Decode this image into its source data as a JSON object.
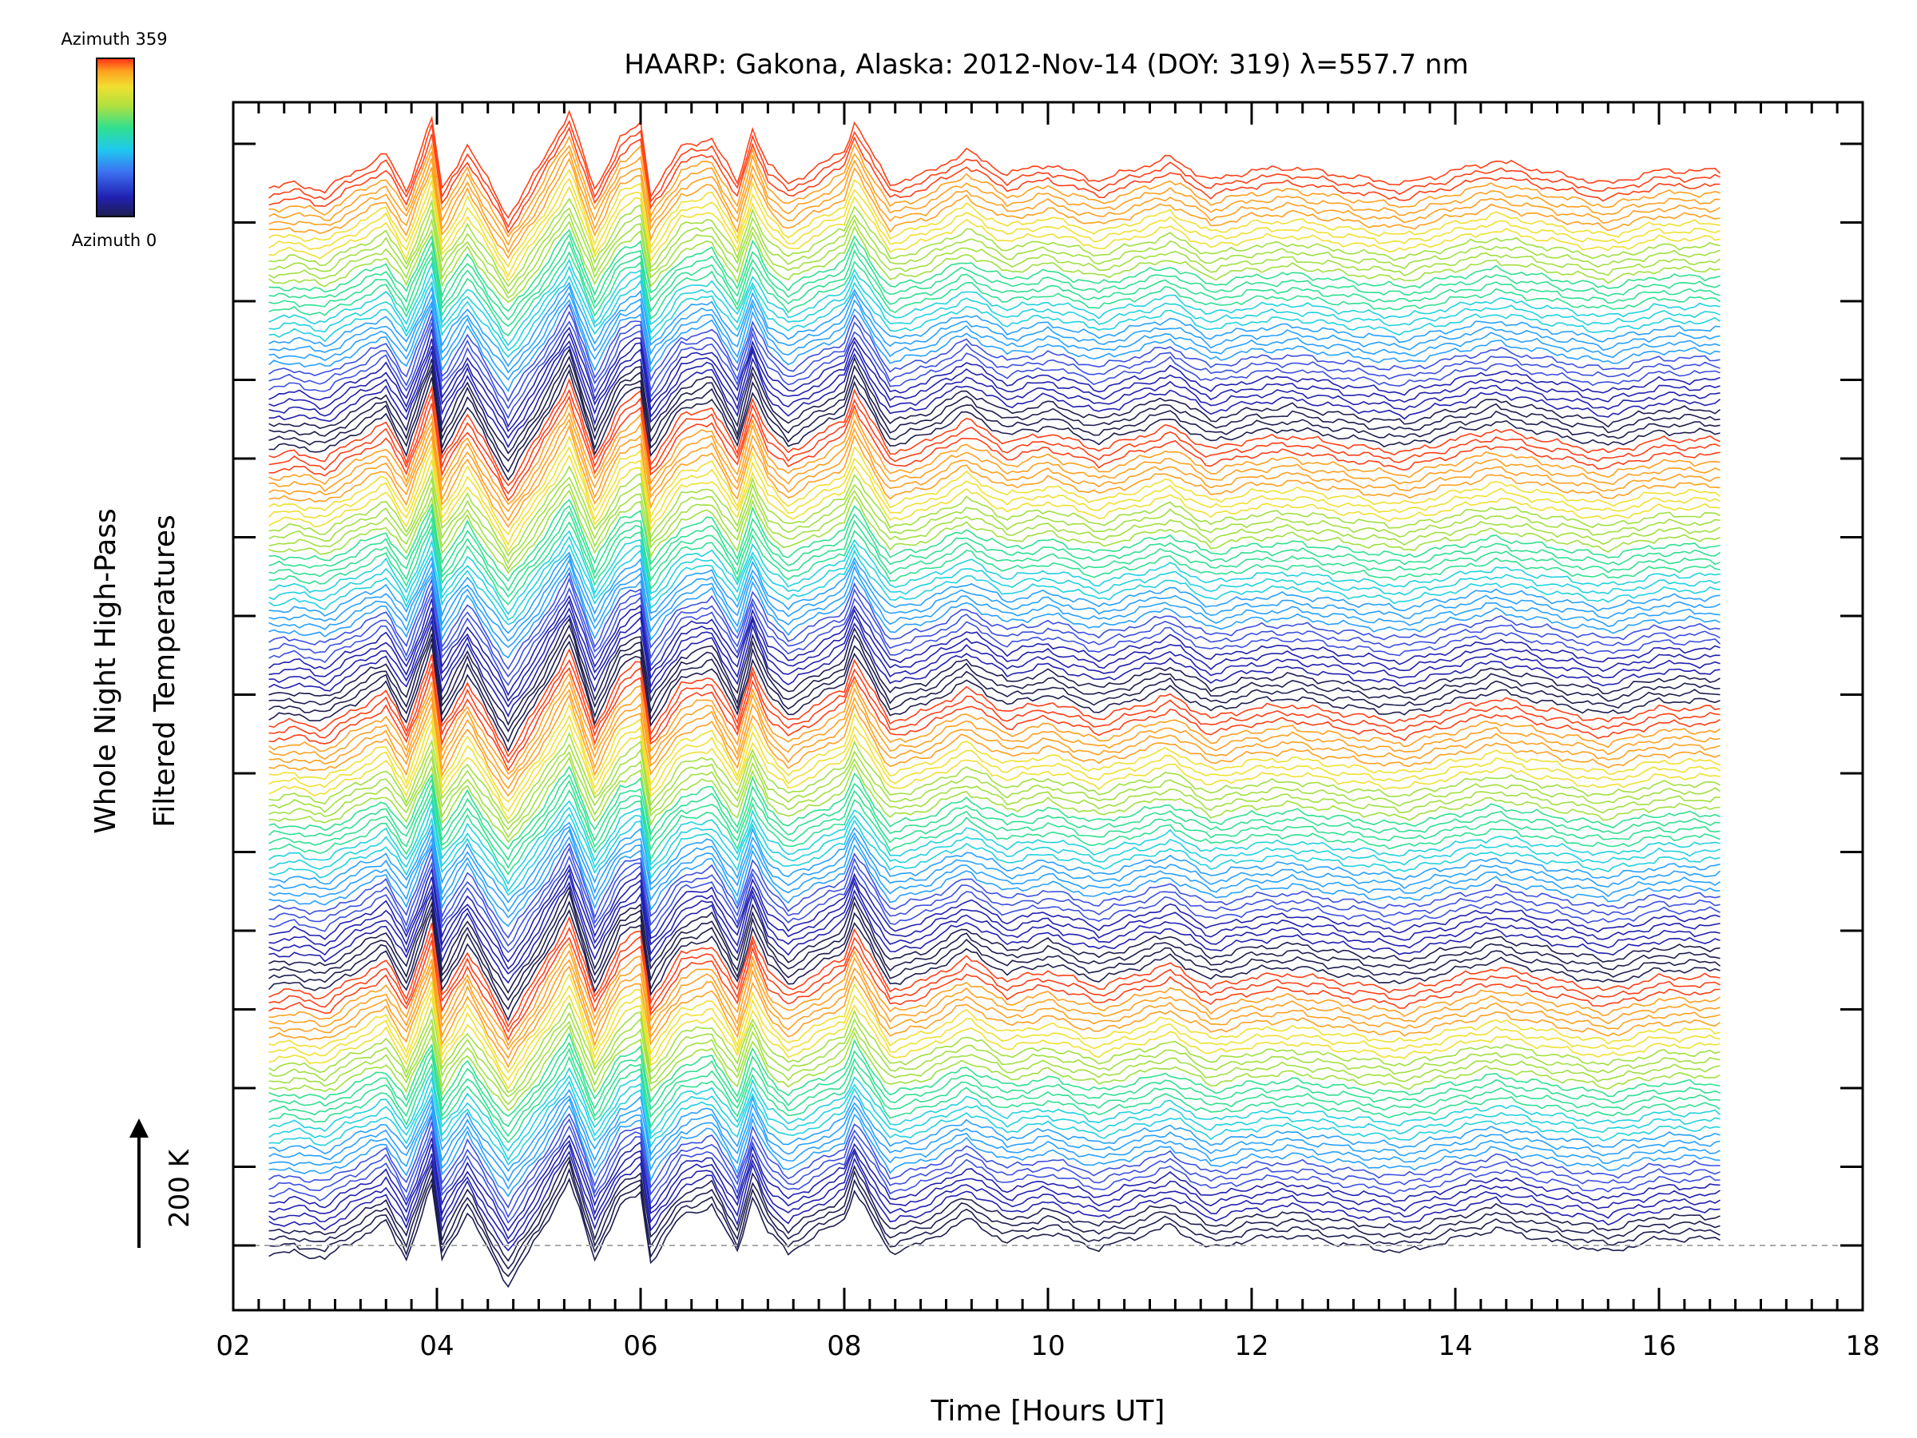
{
  "chart_data": {
    "type": "line",
    "title": "HAARP: Gakona,  Alaska: 2012-Nov-14 (DOY: 319) λ=557.7 nm",
    "xlabel": "Time [Hours UT]",
    "ylabel_line1": "Whole Night High-Pass",
    "ylabel_line2": "Filtered Temperatures",
    "scale_bar_label": "200 K",
    "scale_bar_kelvin": 200,
    "colorbar": {
      "top_label": "Azimuth 359",
      "bottom_label": "Azimuth 0",
      "azimuth_min": 0,
      "azimuth_max": 359,
      "colormap": "rainbow (dark blue → cyan → green → yellow → red)"
    },
    "x_range": [
      2,
      18
    ],
    "x_ticks": [
      "02",
      "04",
      "06",
      "08",
      "10",
      "12",
      "14",
      "16",
      "18"
    ],
    "x_data_range": [
      2.35,
      16.6
    ],
    "grid": false,
    "legend": "colorbar top-left",
    "series_count": 144,
    "series_azimuth_step_deg": 2.5,
    "azimuth_cycles": 4,
    "series_colors_cycle": [
      "#1e1e50",
      "#2020b0",
      "#3c50e0",
      "#28a0ff",
      "#20d2e0",
      "#30e090",
      "#a0e040",
      "#f0e030",
      "#ffa020",
      "#ff4018"
    ],
    "common_profile": {
      "description": "vertically stacked high-pass filtered temperature traces, one per azimuth, sharing a common fluctuation pattern",
      "x_hours": [
        2.35,
        2.6,
        2.9,
        3.1,
        3.5,
        3.7,
        3.95,
        4.05,
        4.3,
        4.7,
        5.0,
        5.3,
        5.55,
        5.8,
        6.0,
        6.1,
        6.4,
        6.7,
        6.95,
        7.1,
        7.25,
        7.45,
        8.0,
        8.1,
        8.35,
        8.45,
        8.8,
        9.2,
        9.6,
        10.0,
        10.5,
        11.2,
        11.6,
        12.0,
        12.4,
        13.0,
        13.5,
        14.0,
        14.4,
        15.0,
        15.5,
        16.0,
        16.6
      ],
      "relative_kelvin": [
        -30,
        -20,
        -40,
        0,
        70,
        -40,
        180,
        -40,
        100,
        -120,
        30,
        200,
        -40,
        120,
        160,
        -50,
        90,
        120,
        -20,
        150,
        40,
        -20,
        80,
        170,
        30,
        -20,
        10,
        80,
        10,
        40,
        -10,
        60,
        -10,
        20,
        30,
        0,
        -20,
        20,
        50,
        10,
        -20,
        20,
        20
      ]
    }
  }
}
